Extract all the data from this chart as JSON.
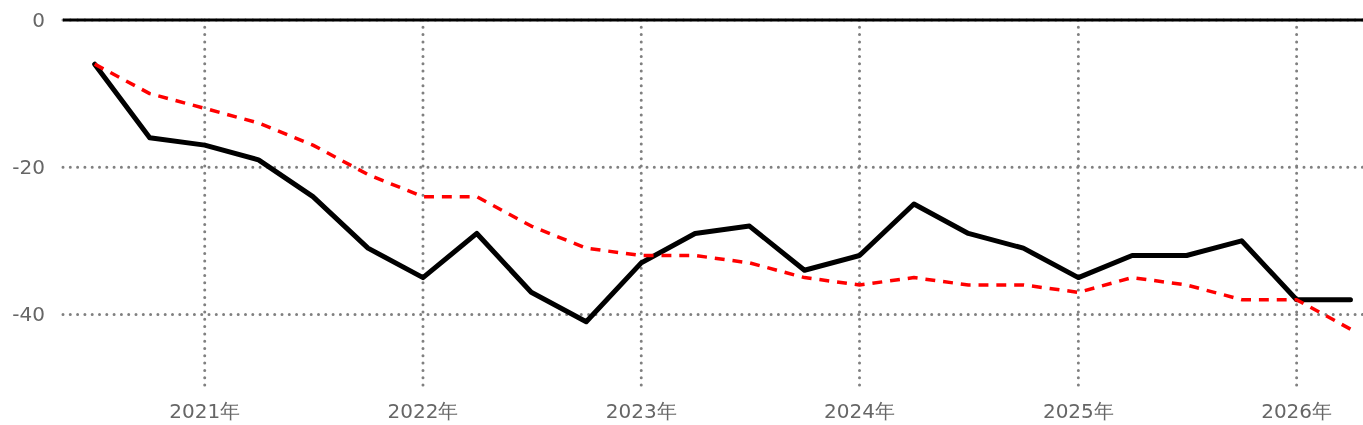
{
  "chart_data": {
    "type": "line",
    "x": [
      "2020-07",
      "2020-10",
      "2021-01",
      "2021-04",
      "2021-07",
      "2021-10",
      "2022-01",
      "2022-04",
      "2022-07",
      "2022-10",
      "2023-01",
      "2023-04",
      "2023-07",
      "2023-10",
      "2024-01",
      "2024-04",
      "2024-07",
      "2024-10",
      "2025-01",
      "2025-04",
      "2025-07",
      "2025-10",
      "2026-01",
      "2026-04"
    ],
    "series": [
      {
        "color": "#000000",
        "line_style": "solid",
        "values": [
          -6,
          -16,
          -17,
          -19,
          -24,
          -31,
          -35,
          -29,
          -37,
          -41,
          -33,
          -29,
          -28,
          -34,
          -32,
          -25,
          -29,
          -31,
          -35,
          -32,
          -32,
          -30,
          -38,
          -38
        ]
      },
      {
        "color": "#ff0000",
        "line_style": "dashed",
        "values": [
          -6,
          -10,
          -12,
          -14,
          -17,
          -21,
          -24,
          -24,
          -28,
          -31,
          -32,
          -32,
          -33,
          -35,
          -36,
          -35,
          -36,
          -36,
          -37,
          -35,
          -36,
          -38,
          -38,
          -42
        ]
      }
    ],
    "xlim": [
      "2020-05-09",
      "2026-04-22"
    ],
    "xticks": [
      {
        "value": "2021-01-01",
        "label": "2021年"
      },
      {
        "value": "2022-01-01",
        "label": "2022年"
      },
      {
        "value": "2023-01-01",
        "label": "2023年"
      },
      {
        "value": "2024-01-01",
        "label": "2024年"
      },
      {
        "value": "2025-01-01",
        "label": "2025年"
      },
      {
        "value": "2026-01-01",
        "label": "2026年"
      }
    ],
    "ylim": [
      -50,
      0
    ],
    "yticks": [
      0,
      -20,
      -40
    ],
    "grid": true,
    "ref_lines": [
      {
        "axis": "y",
        "value": 0,
        "color": "#000000"
      }
    ]
  }
}
